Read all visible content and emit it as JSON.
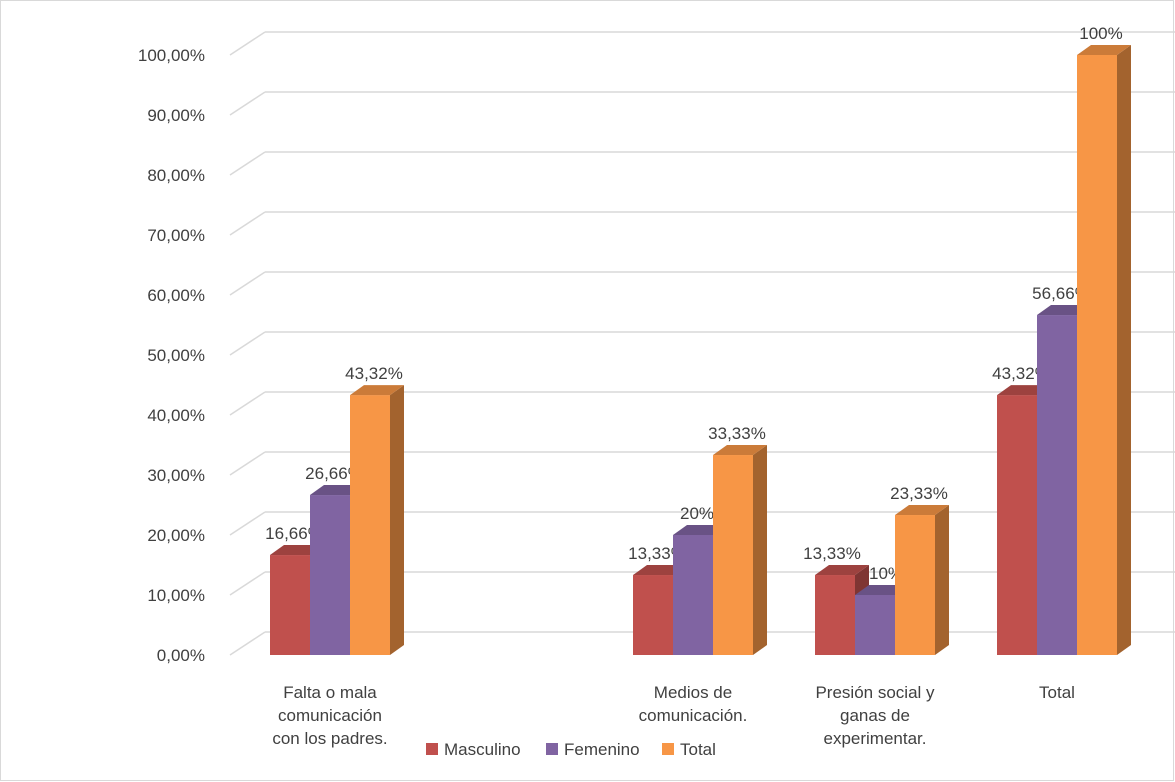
{
  "chart_data": {
    "type": "bar",
    "subtype": "3d-clustered-column",
    "categories": [
      [
        "Falta o mala",
        "comunicación",
        "con los padres."
      ],
      [
        ""
      ],
      [
        "Medios de",
        "comunicación."
      ],
      [
        "Presión social y",
        "ganas de",
        "experimentar."
      ],
      [
        "Total"
      ]
    ],
    "series": [
      {
        "name": "Masculino",
        "color": "#c0504d",
        "values": [
          16.66,
          null,
          13.33,
          13.33,
          43.32
        ],
        "labels": [
          "16,66%",
          "",
          "13,33%",
          "13,33%",
          "43,32%"
        ]
      },
      {
        "name": "Femenino",
        "color": "#8064a2",
        "values": [
          26.66,
          null,
          20,
          10,
          56.66
        ],
        "labels": [
          "26,66%",
          "",
          "20%",
          "10%",
          "56,66%"
        ]
      },
      {
        "name": "Total",
        "color": "#f79646",
        "values": [
          43.32,
          null,
          33.33,
          23.33,
          100
        ],
        "labels": [
          "43,32%",
          "",
          "33,33%",
          "23,33%",
          "100%"
        ]
      }
    ],
    "yticks": [
      "0,00%",
      "10,00%",
      "20,00%",
      "30,00%",
      "40,00%",
      "50,00%",
      "60,00%",
      "70,00%",
      "80,00%",
      "90,00%",
      "100,00%"
    ],
    "ylim": [
      0,
      100
    ],
    "grid": true,
    "legend": "bottom"
  }
}
